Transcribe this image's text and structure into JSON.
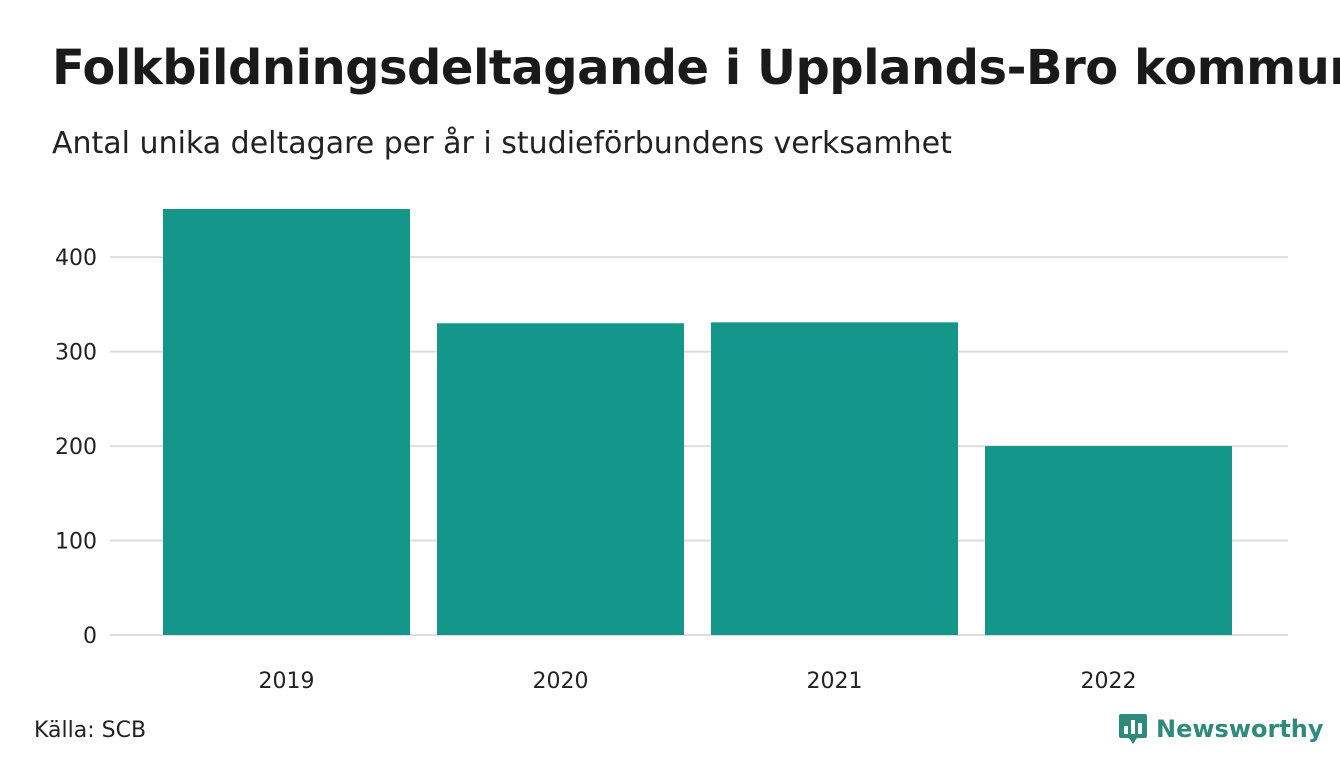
{
  "header": {
    "title": "Folkbildningsdeltagande i Upplands-Bro kommun",
    "subtitle": "Antal unika deltagare per år i studieförbundens verksamhet"
  },
  "footer": {
    "source": "Källa: SCB",
    "brand": "Newsworthy"
  },
  "colors": {
    "bar": "#15968a",
    "grid": "#dddddd",
    "brand": "#2f8a7c"
  },
  "icons": {
    "brand": "bar-chart-speech-bubble-icon"
  },
  "chart_data": {
    "type": "bar",
    "title": "Folkbildningsdeltagande i Upplands-Bro kommun",
    "subtitle": "Antal unika deltagare per år i studieförbundens verksamhet",
    "categories": [
      "2019",
      "2020",
      "2021",
      "2022"
    ],
    "values": [
      451,
      330,
      331,
      200
    ],
    "yticks": [
      0,
      100,
      200,
      300,
      400
    ],
    "ylim": [
      0,
      451
    ],
    "xlabel": "",
    "ylabel": "",
    "grid": true,
    "legend": "none"
  }
}
